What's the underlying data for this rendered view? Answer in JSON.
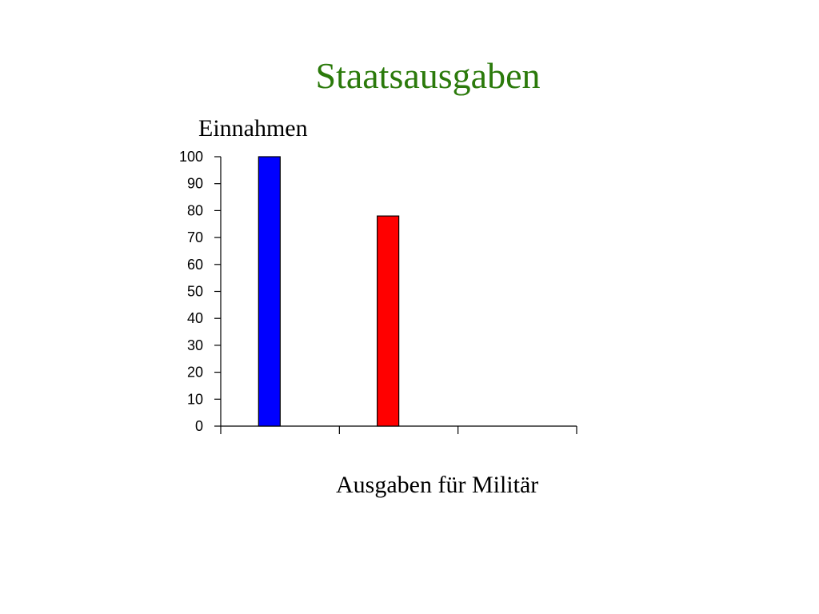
{
  "slide": {
    "title": "Staatsausgaben"
  },
  "chart_data": {
    "type": "bar",
    "title": "Staatsausgaben",
    "ylabel": "Einnahmen",
    "xlabel": "Ausgaben für Militär",
    "ylim": [
      0,
      100
    ],
    "yticks": [
      0,
      10,
      20,
      30,
      40,
      50,
      60,
      70,
      80,
      90,
      100
    ],
    "categories": [
      "",
      "",
      ""
    ],
    "values": [
      100,
      78,
      0
    ],
    "bar_colors": [
      "#0000ff",
      "#ff0000",
      "#ffffff"
    ],
    "grid": false,
    "legend": "none"
  }
}
